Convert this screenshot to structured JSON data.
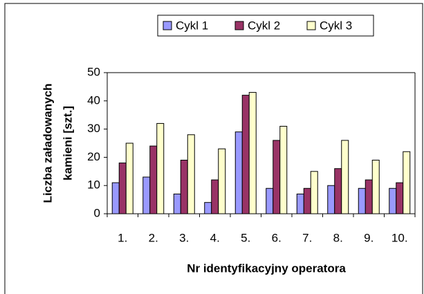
{
  "chart_data": {
    "type": "bar",
    "categories": [
      "1.",
      "2.",
      "3.",
      "4.",
      "5.",
      "6.",
      "7.",
      "8.",
      "9.",
      "10."
    ],
    "series": [
      {
        "name": "Cykl 1",
        "color": "#9999ff",
        "values": [
          11,
          13,
          7,
          4,
          29,
          9,
          7,
          10,
          9,
          9
        ]
      },
      {
        "name": "Cykl 2",
        "color": "#993366",
        "values": [
          18,
          24,
          19,
          12,
          42,
          26,
          9,
          16,
          12,
          11
        ]
      },
      {
        "name": "Cykl 3",
        "color": "#ffffcc",
        "values": [
          25,
          32,
          28,
          23,
          43,
          31,
          15,
          26,
          19,
          22
        ]
      }
    ],
    "xlabel": "Nr identyfikacyjny operatora",
    "ylabel": [
      "Liczba załadowanych",
      "kamieni [szt.]"
    ],
    "ylim": [
      0,
      50
    ],
    "yticks": [
      0,
      10,
      20,
      30,
      40,
      50
    ],
    "legend": "top",
    "grid": false
  }
}
